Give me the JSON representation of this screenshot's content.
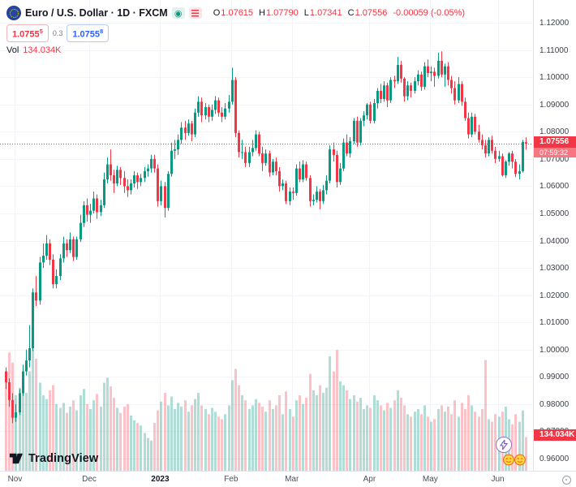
{
  "header": {
    "symbol_title": "Euro / U.S. Dollar · 1D · FXCM",
    "ohlc": {
      "o_label": "O",
      "o": "1.07615",
      "h_label": "H",
      "h": "1.07790",
      "l_label": "L",
      "l": "1.07341",
      "c_label": "C",
      "c": "1.07556",
      "change": "-0.00059 (-0.05%)"
    },
    "bid": "1.0755",
    "bid_sup": "5",
    "spread": "0.3",
    "ask": "1.0755",
    "ask_sup": "8",
    "vol_label": "Vol",
    "vol_value": "134.034K"
  },
  "price_axis": {
    "ticks": [
      "1.12000",
      "1.11000",
      "1.10000",
      "1.09000",
      "1.08000",
      "1.07000",
      "1.06000",
      "1.05000",
      "1.04000",
      "1.03000",
      "1.02000",
      "1.01000",
      "1.00000",
      "0.99000",
      "0.98000",
      "0.97000",
      "0.96000"
    ],
    "last_price": "1.07556",
    "countdown": "07:59:32",
    "volume_label": "134.034K"
  },
  "time_axis": {
    "ticks": [
      {
        "label": "Nov",
        "i": 3,
        "strong": false
      },
      {
        "label": "Dec",
        "i": 25,
        "strong": false
      },
      {
        "label": "2023",
        "i": 46,
        "strong": true
      },
      {
        "label": "Feb",
        "i": 67,
        "strong": false
      },
      {
        "label": "Mar",
        "i": 85,
        "strong": false
      },
      {
        "label": "Apr",
        "i": 108,
        "strong": false
      },
      {
        "label": "May",
        "i": 126,
        "strong": false
      },
      {
        "label": "Jun",
        "i": 146,
        "strong": false
      }
    ]
  },
  "footer": {
    "logo_text": "TradingView"
  },
  "colors": {
    "up": "#089981",
    "down": "#f23645",
    "vol_up": "rgba(8,153,129,0.32)",
    "vol_down": "rgba(242,54,69,0.30)",
    "grid": "#f2f4f9",
    "accent_blue": "#2962ff",
    "text": "#131722",
    "muted": "#787b86"
  },
  "chart_data": {
    "type": "candlestick",
    "title": "Euro / U.S. Dollar",
    "symbol": "EUR/USD",
    "interval": "1D",
    "exchange": "FXCM",
    "y_range": [
      0.96,
      1.12
    ],
    "x_range": [
      "Nov 2022",
      "Jun 2023"
    ],
    "legend_ohlc": {
      "open": 1.07615,
      "high": 1.0779,
      "low": 1.07341,
      "close": 1.07556,
      "change": -0.00059,
      "change_pct": -0.05
    },
    "last_volume_k": 134.034,
    "candles": [
      [
        0.992,
        0.9935,
        0.9855,
        0.988
      ],
      [
        0.988,
        0.9895,
        0.979,
        0.9815
      ],
      [
        0.9815,
        0.984,
        0.973,
        0.975
      ],
      [
        0.975,
        0.98,
        0.9735,
        0.977
      ],
      [
        0.977,
        0.9855,
        0.976,
        0.984
      ],
      [
        0.984,
        0.9945,
        0.983,
        0.992
      ],
      [
        0.992,
        1.0,
        0.9905,
        0.996
      ],
      [
        0.996,
        1.009,
        0.9935,
        1.0005
      ],
      [
        1.0005,
        1.0225,
        0.9995,
        1.021
      ],
      [
        1.021,
        1.027,
        1.016,
        1.018
      ],
      [
        1.018,
        1.034,
        1.0165,
        1.032
      ],
      [
        1.032,
        1.039,
        1.03,
        1.0345
      ],
      [
        1.0345,
        1.042,
        1.033,
        1.039
      ],
      [
        1.039,
        1.0405,
        1.031,
        1.033
      ],
      [
        1.033,
        1.035,
        1.0225,
        1.024
      ],
      [
        1.024,
        1.0295,
        1.0225,
        1.027
      ],
      [
        1.027,
        1.035,
        1.0255,
        1.0335
      ],
      [
        1.0335,
        1.0415,
        1.032,
        1.039
      ],
      [
        1.039,
        1.0405,
        1.034,
        1.0365
      ],
      [
        1.0365,
        1.043,
        1.0355,
        1.0405
      ],
      [
        1.0405,
        1.0415,
        1.0325,
        1.034
      ],
      [
        1.034,
        1.0415,
        1.033,
        1.0405
      ],
      [
        1.0405,
        1.0495,
        1.0395,
        1.0465
      ],
      [
        1.0465,
        1.0545,
        1.045,
        1.053
      ],
      [
        1.053,
        1.0555,
        1.047,
        1.0495
      ],
      [
        1.0495,
        1.0535,
        1.0465,
        1.051
      ],
      [
        1.051,
        1.058,
        1.05,
        1.0555
      ],
      [
        1.0555,
        1.057,
        1.048,
        1.0505
      ],
      [
        1.0505,
        1.055,
        1.049,
        1.053
      ],
      [
        1.053,
        1.065,
        1.052,
        1.0625
      ],
      [
        1.0625,
        1.0705,
        1.061,
        1.068
      ],
      [
        1.068,
        1.0735,
        1.062,
        1.064
      ],
      [
        1.064,
        1.066,
        1.0575,
        1.061
      ],
      [
        1.061,
        1.0675,
        1.06,
        1.066
      ],
      [
        1.066,
        1.067,
        1.0605,
        1.063
      ],
      [
        1.063,
        1.0655,
        1.0575,
        1.06
      ],
      [
        1.06,
        1.0625,
        1.056,
        1.0585
      ],
      [
        1.0585,
        1.0625,
        1.057,
        1.061
      ],
      [
        1.061,
        1.0655,
        1.0595,
        1.064
      ],
      [
        1.064,
        1.065,
        1.059,
        1.0615
      ],
      [
        1.0615,
        1.0645,
        1.06,
        1.063
      ],
      [
        1.063,
        1.067,
        1.0615,
        1.0655
      ],
      [
        1.0655,
        1.068,
        1.0635,
        1.0665
      ],
      [
        1.0665,
        1.0715,
        1.065,
        1.07
      ],
      [
        1.07,
        1.0715,
        1.065,
        1.0665
      ],
      [
        1.0665,
        1.068,
        1.0525,
        1.0545
      ],
      [
        1.0545,
        1.062,
        1.053,
        1.06
      ],
      [
        1.06,
        1.0615,
        1.0485,
        1.052
      ],
      [
        1.052,
        1.0655,
        1.051,
        1.0645
      ],
      [
        1.0645,
        1.076,
        1.0635,
        1.073
      ],
      [
        1.073,
        1.077,
        1.07,
        1.0735
      ],
      [
        1.0735,
        1.079,
        1.0715,
        1.077
      ],
      [
        1.077,
        1.0835,
        1.0755,
        1.0815
      ],
      [
        1.0815,
        1.084,
        1.077,
        1.0795
      ],
      [
        1.0795,
        1.0845,
        1.0785,
        1.083
      ],
      [
        1.083,
        1.084,
        1.0765,
        1.079
      ],
      [
        1.079,
        1.0885,
        1.078,
        1.087
      ],
      [
        1.087,
        1.093,
        1.0855,
        1.091
      ],
      [
        1.091,
        1.0925,
        1.0835,
        1.086
      ],
      [
        1.086,
        1.0905,
        1.0845,
        1.089
      ],
      [
        1.089,
        1.09,
        1.0835,
        1.0855
      ],
      [
        1.0855,
        1.09,
        1.084,
        1.088
      ],
      [
        1.088,
        1.093,
        1.0865,
        1.0915
      ],
      [
        1.0915,
        1.0925,
        1.0855,
        1.087
      ],
      [
        1.087,
        1.089,
        1.0835,
        1.0855
      ],
      [
        1.0855,
        1.0905,
        1.0845,
        1.0885
      ],
      [
        1.0885,
        1.0935,
        1.087,
        1.091
      ],
      [
        1.091,
        1.1035,
        1.09,
        1.099
      ],
      [
        1.099,
        1.1,
        1.078,
        1.0795
      ],
      [
        1.0795,
        1.0805,
        1.0705,
        1.0725
      ],
      [
        1.0725,
        1.077,
        1.07,
        1.0725
      ],
      [
        1.0725,
        1.0745,
        1.067,
        1.0685
      ],
      [
        1.0685,
        1.0745,
        1.067,
        1.0725
      ],
      [
        1.0725,
        1.077,
        1.071,
        1.074
      ],
      [
        1.074,
        1.0805,
        1.073,
        1.079
      ],
      [
        1.079,
        1.08,
        1.071,
        1.072
      ],
      [
        1.072,
        1.0745,
        1.0655,
        1.0685
      ],
      [
        1.0685,
        1.0735,
        1.0675,
        1.072
      ],
      [
        1.072,
        1.073,
        1.0635,
        1.065
      ],
      [
        1.065,
        1.07,
        1.064,
        1.069
      ],
      [
        1.069,
        1.0705,
        1.064,
        1.0655
      ],
      [
        1.0655,
        1.067,
        1.058,
        1.06
      ],
      [
        1.06,
        1.0625,
        1.0585,
        1.061
      ],
      [
        1.061,
        1.062,
        1.0535,
        1.0545
      ],
      [
        1.0545,
        1.0595,
        1.053,
        1.058
      ],
      [
        1.058,
        1.0595,
        1.055,
        1.0575
      ],
      [
        1.0575,
        1.068,
        1.0565,
        1.0665
      ],
      [
        1.0665,
        1.069,
        1.0615,
        1.0625
      ],
      [
        1.0625,
        1.0695,
        1.0615,
        1.068
      ],
      [
        1.068,
        1.069,
        1.062,
        1.063
      ],
      [
        1.063,
        1.064,
        1.0525,
        1.0545
      ],
      [
        1.0545,
        1.057,
        1.053,
        1.055
      ],
      [
        1.055,
        1.06,
        1.054,
        1.058
      ],
      [
        1.058,
        1.059,
        1.0515,
        1.0545
      ],
      [
        1.0545,
        1.0605,
        1.0535,
        1.0585
      ],
      [
        1.0585,
        1.064,
        1.057,
        1.062
      ],
      [
        1.062,
        1.075,
        1.061,
        1.0735
      ],
      [
        1.0735,
        1.076,
        1.069,
        1.0715
      ],
      [
        1.0715,
        1.073,
        1.0595,
        1.0615
      ],
      [
        1.0615,
        1.0685,
        1.0605,
        1.0665
      ],
      [
        1.0665,
        1.0775,
        1.0655,
        1.076
      ],
      [
        1.076,
        1.079,
        1.071,
        1.072
      ],
      [
        1.072,
        1.078,
        1.0705,
        1.0765
      ],
      [
        1.0765,
        1.085,
        1.0755,
        1.084
      ],
      [
        1.084,
        1.0855,
        1.0745,
        1.076
      ],
      [
        1.076,
        1.085,
        1.075,
        1.084
      ],
      [
        1.084,
        1.0875,
        1.082,
        1.086
      ],
      [
        1.086,
        1.0905,
        1.0845,
        1.09
      ],
      [
        1.09,
        1.091,
        1.083,
        1.084
      ],
      [
        1.084,
        1.092,
        1.083,
        1.0905
      ],
      [
        1.0905,
        1.096,
        1.0885,
        1.095
      ],
      [
        1.095,
        1.0975,
        1.0905,
        1.092
      ],
      [
        1.092,
        1.0985,
        1.091,
        1.097
      ],
      [
        1.097,
        1.098,
        1.089,
        1.0915
      ],
      [
        1.0915,
        1.1,
        1.0905,
        1.099
      ],
      [
        1.099,
        1.1005,
        1.096,
        1.0985
      ],
      [
        1.0985,
        1.1075,
        1.0975,
        1.1045
      ],
      [
        1.1045,
        1.106,
        1.098,
        1.0995
      ],
      [
        1.0995,
        1.1,
        1.091,
        1.093
      ],
      [
        1.093,
        1.0985,
        1.0915,
        1.097
      ],
      [
        1.097,
        1.098,
        1.0925,
        1.095
      ],
      [
        1.095,
        1.1,
        1.094,
        1.0985
      ],
      [
        1.0985,
        1.1025,
        1.097,
        1.101
      ],
      [
        1.101,
        1.102,
        1.095,
        1.0965
      ],
      [
        1.0965,
        1.1055,
        1.0955,
        1.104
      ],
      [
        1.104,
        1.1065,
        1.1,
        1.1015
      ],
      [
        1.1015,
        1.104,
        1.0985,
        1.102
      ],
      [
        1.102,
        1.1035,
        1.0965,
        1.1005
      ],
      [
        1.1005,
        1.109,
        1.0995,
        1.106
      ],
      [
        1.106,
        1.1095,
        1.1,
        1.101
      ],
      [
        1.101,
        1.105,
        1.0965,
        1.104
      ],
      [
        1.104,
        1.1055,
        1.097,
        1.099
      ],
      [
        1.099,
        1.1005,
        1.094,
        1.096
      ],
      [
        1.096,
        1.0985,
        1.09,
        1.0915
      ],
      [
        1.0915,
        1.1,
        1.0905,
        1.0975
      ],
      [
        1.0975,
        1.0985,
        1.0895,
        1.091
      ],
      [
        1.091,
        1.0925,
        1.084,
        1.085
      ],
      [
        1.085,
        1.087,
        1.0775,
        1.079
      ],
      [
        1.079,
        1.087,
        1.078,
        1.0855
      ],
      [
        1.0855,
        1.0865,
        1.079,
        1.08
      ],
      [
        1.08,
        1.0825,
        1.076,
        1.077
      ],
      [
        1.077,
        1.079,
        1.0735,
        1.075
      ],
      [
        1.075,
        1.077,
        1.0705,
        1.072
      ],
      [
        1.072,
        1.078,
        1.071,
        1.077
      ],
      [
        1.077,
        1.0785,
        1.072,
        1.073
      ],
      [
        1.073,
        1.0745,
        1.0685,
        1.07
      ],
      [
        1.07,
        1.073,
        1.069,
        1.071
      ],
      [
        1.071,
        1.072,
        1.0635,
        1.064
      ],
      [
        1.064,
        1.0695,
        1.063,
        1.069
      ],
      [
        1.069,
        1.0725,
        1.0675,
        1.072
      ],
      [
        1.072,
        1.073,
        1.0665,
        1.069
      ],
      [
        1.069,
        1.07,
        1.0633,
        1.0645
      ],
      [
        1.0645,
        1.068,
        1.0625,
        1.0655
      ],
      [
        1.0655,
        1.077,
        1.065,
        1.0762
      ],
      [
        1.07615,
        1.0779,
        1.07341,
        1.07556
      ]
    ],
    "volumes_k": [
      380,
      470,
      430,
      300,
      330,
      350,
      310,
      395,
      480,
      445,
      350,
      300,
      285,
      320,
      340,
      265,
      250,
      270,
      230,
      255,
      280,
      240,
      300,
      325,
      265,
      245,
      280,
      305,
      255,
      350,
      370,
      335,
      290,
      250,
      230,
      255,
      265,
      220,
      200,
      190,
      180,
      150,
      130,
      120,
      190,
      240,
      275,
      310,
      260,
      295,
      245,
      270,
      255,
      280,
      235,
      260,
      285,
      310,
      260,
      245,
      225,
      250,
      235,
      215,
      205,
      225,
      260,
      360,
      405,
      340,
      300,
      280,
      245,
      260,
      285,
      270,
      255,
      235,
      280,
      245,
      260,
      300,
      225,
      315,
      245,
      215,
      280,
      300,
      265,
      290,
      385,
      320,
      300,
      340,
      310,
      330,
      455,
      395,
      480,
      355,
      340,
      320,
      285,
      300,
      275,
      290,
      245,
      260,
      250,
      300,
      280,
      260,
      240,
      270,
      250,
      280,
      320,
      290,
      260,
      225,
      215,
      235,
      245,
      225,
      260,
      215,
      195,
      205,
      245,
      260,
      235,
      255,
      225,
      280,
      215,
      270,
      245,
      300,
      260,
      235,
      215,
      245,
      440,
      205,
      195,
      225,
      215,
      235,
      255,
      205,
      185,
      225,
      195,
      240,
      134.034
    ]
  }
}
